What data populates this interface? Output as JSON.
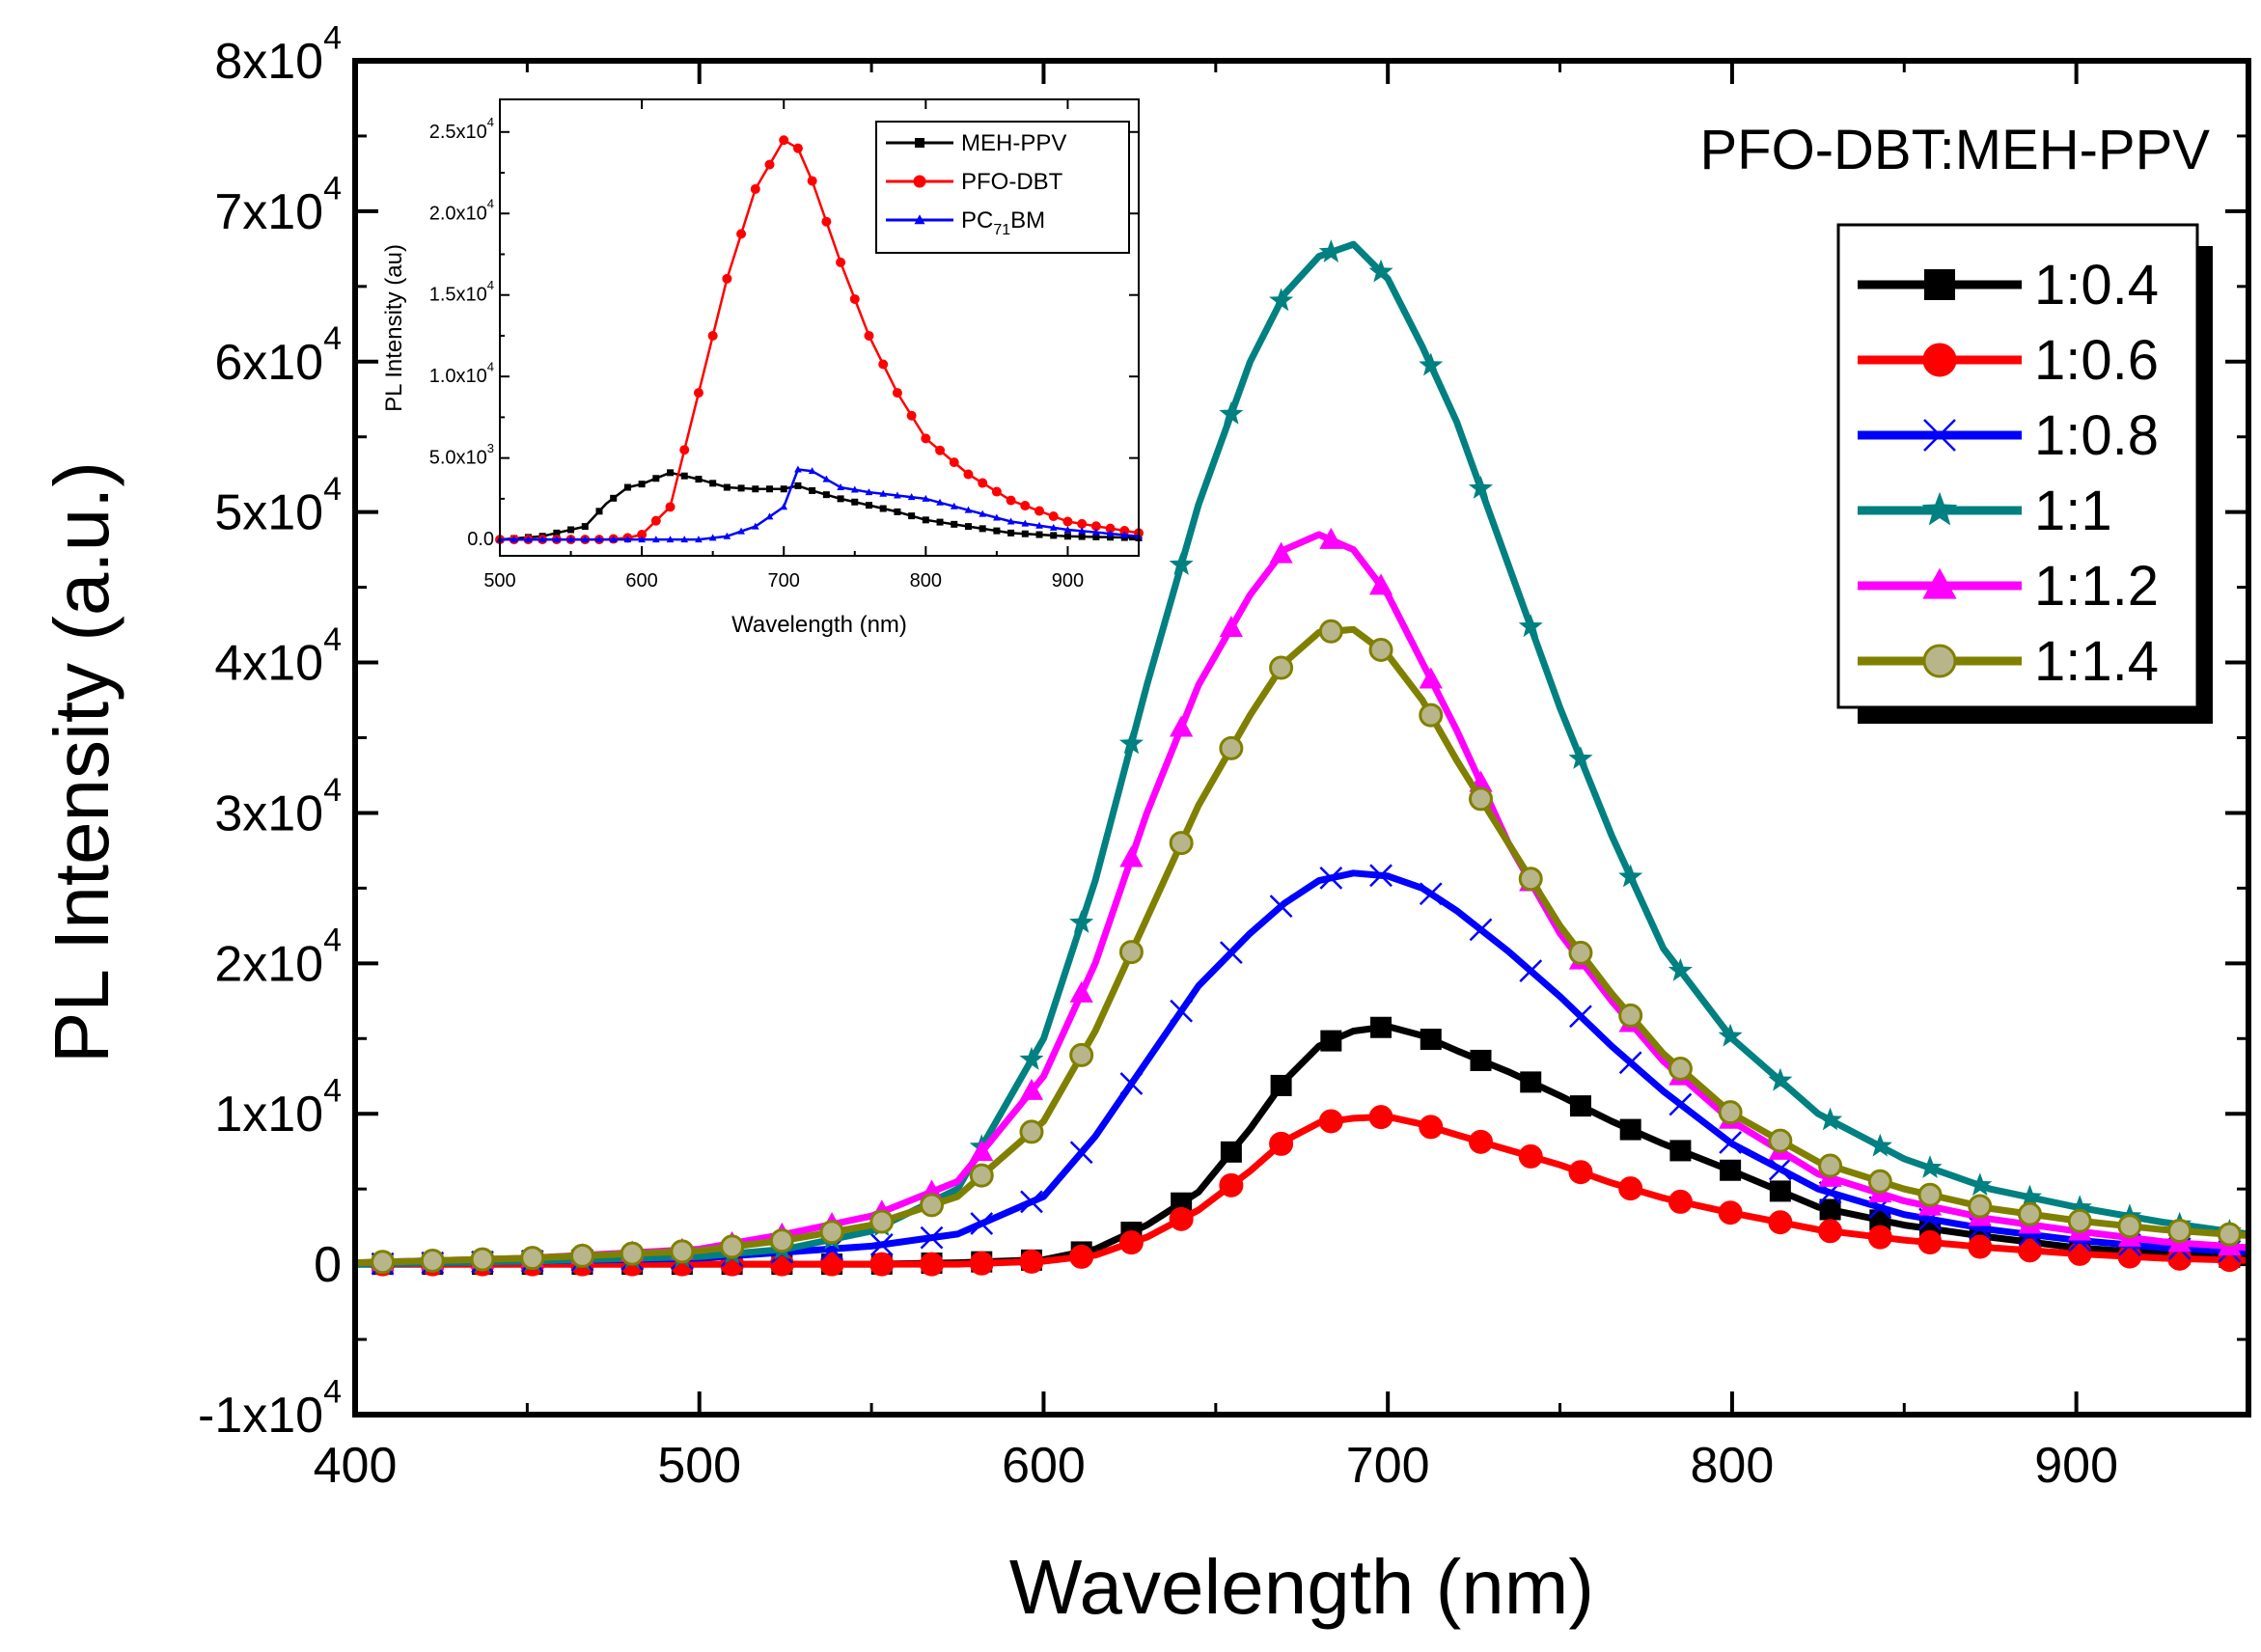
{
  "chart_data": [
    {
      "type": "line",
      "title": "PFO-DBT:MEH-PPV",
      "xlabel": "Wavelength (nm)",
      "ylabel": "PL Intensity (a.u.)",
      "xlim": [
        400,
        950
      ],
      "ylim": [
        -10000,
        80000
      ],
      "xticks": [
        400,
        500,
        600,
        700,
        800,
        900
      ],
      "xtick_labels": [
        "400",
        "500",
        "600",
        "700",
        "800",
        "900"
      ],
      "yticks": [
        -10000,
        0,
        10000,
        20000,
        30000,
        40000,
        50000,
        60000,
        70000,
        80000
      ],
      "ytick_labels": [
        {
          "mant": "-1x10",
          "exp": "4"
        },
        {
          "mant": "0",
          "exp": ""
        },
        {
          "mant": "1x10",
          "exp": "4"
        },
        {
          "mant": "2x10",
          "exp": "4"
        },
        {
          "mant": "3x10",
          "exp": "4"
        },
        {
          "mant": "4x10",
          "exp": "4"
        },
        {
          "mant": "5x10",
          "exp": "4"
        },
        {
          "mant": "6x10",
          "exp": "4"
        },
        {
          "mant": "7x10",
          "exp": "4"
        },
        {
          "mant": "8x10",
          "exp": "4"
        }
      ],
      "legend_position": "top-right",
      "x": [
        400,
        450,
        500,
        525,
        550,
        575,
        600,
        615,
        630,
        645,
        660,
        670,
        680,
        690,
        700,
        710,
        720,
        735,
        750,
        765,
        780,
        800,
        825,
        850,
        875,
        900,
        925,
        950
      ],
      "series": [
        {
          "name": "1:0.4",
          "color": "#000000",
          "marker": "square",
          "values": [
            0,
            0,
            0,
            0,
            0,
            100,
            300,
            1000,
            2600,
            4800,
            9000,
            12200,
            14500,
            15500,
            15800,
            15200,
            14200,
            12800,
            11200,
            9500,
            8000,
            6200,
            3800,
            2600,
            1800,
            1100,
            700,
            400
          ]
        },
        {
          "name": "1:0.6",
          "color": "#ff0000",
          "marker": "circle",
          "values": [
            0,
            0,
            0,
            0,
            0,
            0,
            200,
            600,
            1800,
            3600,
            6200,
            8200,
            9400,
            9700,
            9800,
            9300,
            8600,
            7600,
            6600,
            5400,
            4400,
            3400,
            2300,
            1600,
            1100,
            700,
            400,
            250
          ]
        },
        {
          "name": "1:0.8",
          "color": "#0000ff",
          "marker": "x",
          "values": [
            0,
            200,
            400,
            800,
            1200,
            2000,
            4500,
            8500,
            13500,
            18500,
            22000,
            24000,
            25500,
            26000,
            25800,
            25000,
            23500,
            20800,
            17800,
            14500,
            11500,
            8000,
            5000,
            3300,
            2300,
            1600,
            1100,
            800
          ]
        },
        {
          "name": "1:1",
          "color": "#008080",
          "marker": "star",
          "values": [
            0,
            200,
            500,
            1000,
            2200,
            5000,
            15000,
            25500,
            38500,
            50500,
            60000,
            64500,
            67000,
            67800,
            65500,
            61000,
            56000,
            46500,
            37000,
            28500,
            21000,
            15000,
            10000,
            7000,
            5000,
            3800,
            2800,
            2000
          ]
        },
        {
          "name": "1:1.2",
          "color": "#ff00ff",
          "marker": "triangle",
          "values": [
            100,
            400,
            1000,
            2000,
            3200,
            5500,
            12500,
            20000,
            30000,
            38500,
            44500,
            47500,
            48500,
            47500,
            44500,
            40000,
            35500,
            28000,
            22000,
            17500,
            13500,
            9500,
            6000,
            4200,
            3000,
            2200,
            1500,
            1100
          ]
        },
        {
          "name": "1:1.4",
          "color": "#808000",
          "marker": "circle",
          "values": [
            100,
            400,
            900,
            1600,
            2600,
            4500,
            9500,
            15500,
            23000,
            30500,
            36500,
            40000,
            42000,
            42200,
            40500,
            37500,
            33500,
            28000,
            22500,
            18000,
            14000,
            10000,
            6800,
            5000,
            3700,
            2900,
            2300,
            1900
          ]
        }
      ]
    },
    {
      "type": "line",
      "title": "",
      "xlabel": "Wavelength (nm)",
      "ylabel": "PL Intensity (au)",
      "xlim": [
        500,
        950
      ],
      "ylim": [
        -1000,
        27000
      ],
      "xticks": [
        500,
        600,
        700,
        800,
        900
      ],
      "xtick_labels": [
        "500",
        "600",
        "700",
        "800",
        "900"
      ],
      "yticks": [
        0,
        5000,
        10000,
        15000,
        20000,
        25000
      ],
      "ytick_labels": [
        {
          "mant": "0.0",
          "exp": ""
        },
        {
          "mant": "5.0x10",
          "exp": "3"
        },
        {
          "mant": "1.0x10",
          "exp": "4"
        },
        {
          "mant": "1.5x10",
          "exp": "4"
        },
        {
          "mant": "2.0x10",
          "exp": "4"
        },
        {
          "mant": "2.5x10",
          "exp": "4"
        }
      ],
      "legend_position": "top-right",
      "x": [
        500,
        530,
        560,
        575,
        590,
        600,
        620,
        640,
        660,
        680,
        700,
        710,
        720,
        740,
        760,
        780,
        800,
        830,
        860,
        900,
        950
      ],
      "series": [
        {
          "name": "MEH-PPV",
          "label_parts": [
            "MEH-PPV"
          ],
          "color": "#000000",
          "marker": "square",
          "values": [
            0,
            200,
            800,
            2200,
            3200,
            3400,
            4100,
            3700,
            3200,
            3100,
            3100,
            3300,
            3000,
            2500,
            2100,
            1700,
            1200,
            800,
            400,
            200,
            100
          ]
        },
        {
          "name": "PFO-DBT",
          "label_parts": [
            "PFO-DBT"
          ],
          "color": "#ff0000",
          "marker": "circle",
          "values": [
            0,
            0,
            0,
            0,
            100,
            300,
            2000,
            9000,
            16000,
            21500,
            24500,
            24000,
            22000,
            17000,
            12500,
            9000,
            6200,
            4000,
            2400,
            1100,
            400
          ]
        },
        {
          "name": "PC71BM",
          "label_parts": [
            "PC",
            "71",
            "BM"
          ],
          "color": "#0000ff",
          "marker": "triangle",
          "values": [
            0,
            0,
            0,
            0,
            0,
            0,
            0,
            0,
            200,
            800,
            2000,
            4300,
            4200,
            3200,
            2900,
            2700,
            2500,
            1800,
            1100,
            600,
            200
          ]
        }
      ]
    }
  ]
}
